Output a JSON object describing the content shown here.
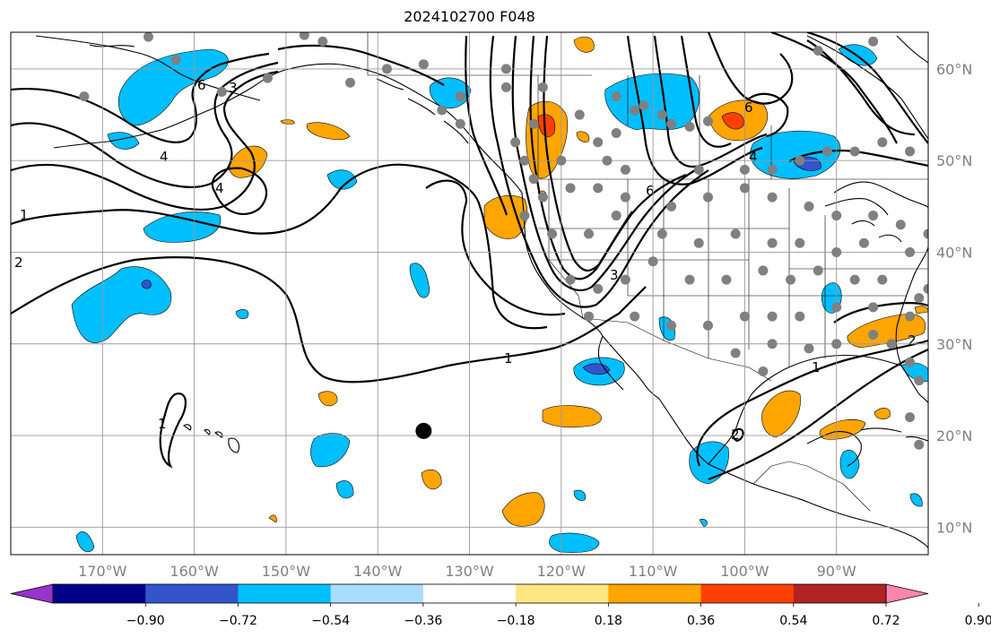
{
  "title": "2024102700 F048",
  "map": {
    "projection": "equirectangular",
    "lon_range": [
      -180,
      -80
    ],
    "lat_range": [
      7,
      64
    ],
    "grid": true,
    "lon_ticks": [
      {
        "value": -170,
        "label": "170°W"
      },
      {
        "value": -160,
        "label": "160°W"
      },
      {
        "value": -150,
        "label": "150°W"
      },
      {
        "value": -140,
        "label": "140°W"
      },
      {
        "value": -130,
        "label": "130°W"
      },
      {
        "value": -120,
        "label": "120°W"
      },
      {
        "value": -110,
        "label": "110°W"
      },
      {
        "value": -100,
        "label": "100°W"
      },
      {
        "value": -90,
        "label": "90°W"
      }
    ],
    "lat_ticks": [
      {
        "value": 60,
        "label": "60°N"
      },
      {
        "value": 50,
        "label": "50°N"
      },
      {
        "value": 40,
        "label": "40°N"
      },
      {
        "value": 30,
        "label": "30°N"
      },
      {
        "value": 20,
        "label": "20°N"
      },
      {
        "value": 10,
        "label": "10°N"
      }
    ],
    "contour_labels": [
      "1",
      "2",
      "3",
      "4",
      "6"
    ],
    "marker": {
      "lon": -135,
      "lat": 20.5
    }
  },
  "colorbar": {
    "ticks": [
      "−0.90",
      "−0.72",
      "−0.54",
      "−0.36",
      "−0.18",
      "0.18",
      "0.36",
      "0.54",
      "0.72",
      "0.90"
    ],
    "colors": [
      "#9933cc",
      "#00008b",
      "#3355cc",
      "#00bfff",
      "#aadcff",
      "#ffffff",
      "#ffe680",
      "#ffa500",
      "#ff4000",
      "#b22222",
      "#ff85ad"
    ],
    "extend": "both"
  },
  "colors": {
    "neg_strong": "#3355cc",
    "neg": "#00bfff",
    "pos": "#ffa500",
    "pos_strong": "#ff4000",
    "station": "#808080",
    "grid": "#999999"
  }
}
